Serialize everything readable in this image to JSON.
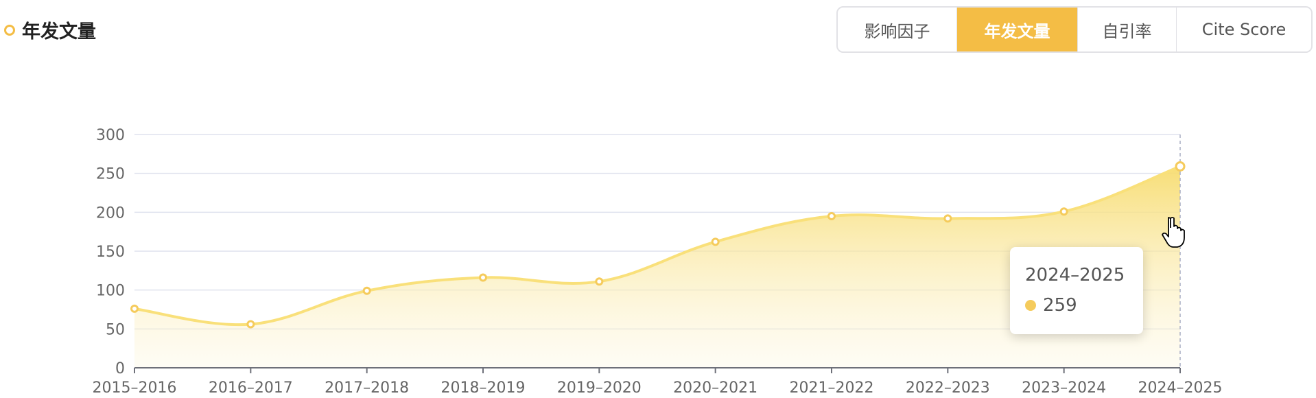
{
  "header": {
    "title": "年发文量"
  },
  "tabs": [
    {
      "label": "影响因子",
      "active": false
    },
    {
      "label": "年发文量",
      "active": true
    },
    {
      "label": "自引率",
      "active": false
    },
    {
      "label": "Cite Score",
      "active": false
    }
  ],
  "colors": {
    "accent": "#f4bd45",
    "line": "#f9e07a",
    "fill_top": "#f7dc6f",
    "grid": "#dfe2ee"
  },
  "tooltip": {
    "label": "2024–2025",
    "value": "259"
  },
  "chart_data": {
    "type": "area",
    "categories": [
      "2015–2016",
      "2016–2017",
      "2017–2018",
      "2018–2019",
      "2019–2020",
      "2020–2021",
      "2021–2022",
      "2022–2023",
      "2023–2024",
      "2024–2025"
    ],
    "values": [
      76,
      56,
      99,
      116,
      111,
      162,
      195,
      192,
      201,
      259
    ],
    "yticks": [
      0,
      50,
      100,
      150,
      200,
      250,
      300
    ],
    "ylim": [
      0,
      300
    ],
    "grid": true,
    "smooth": true,
    "highlighted": "2024–2025"
  }
}
